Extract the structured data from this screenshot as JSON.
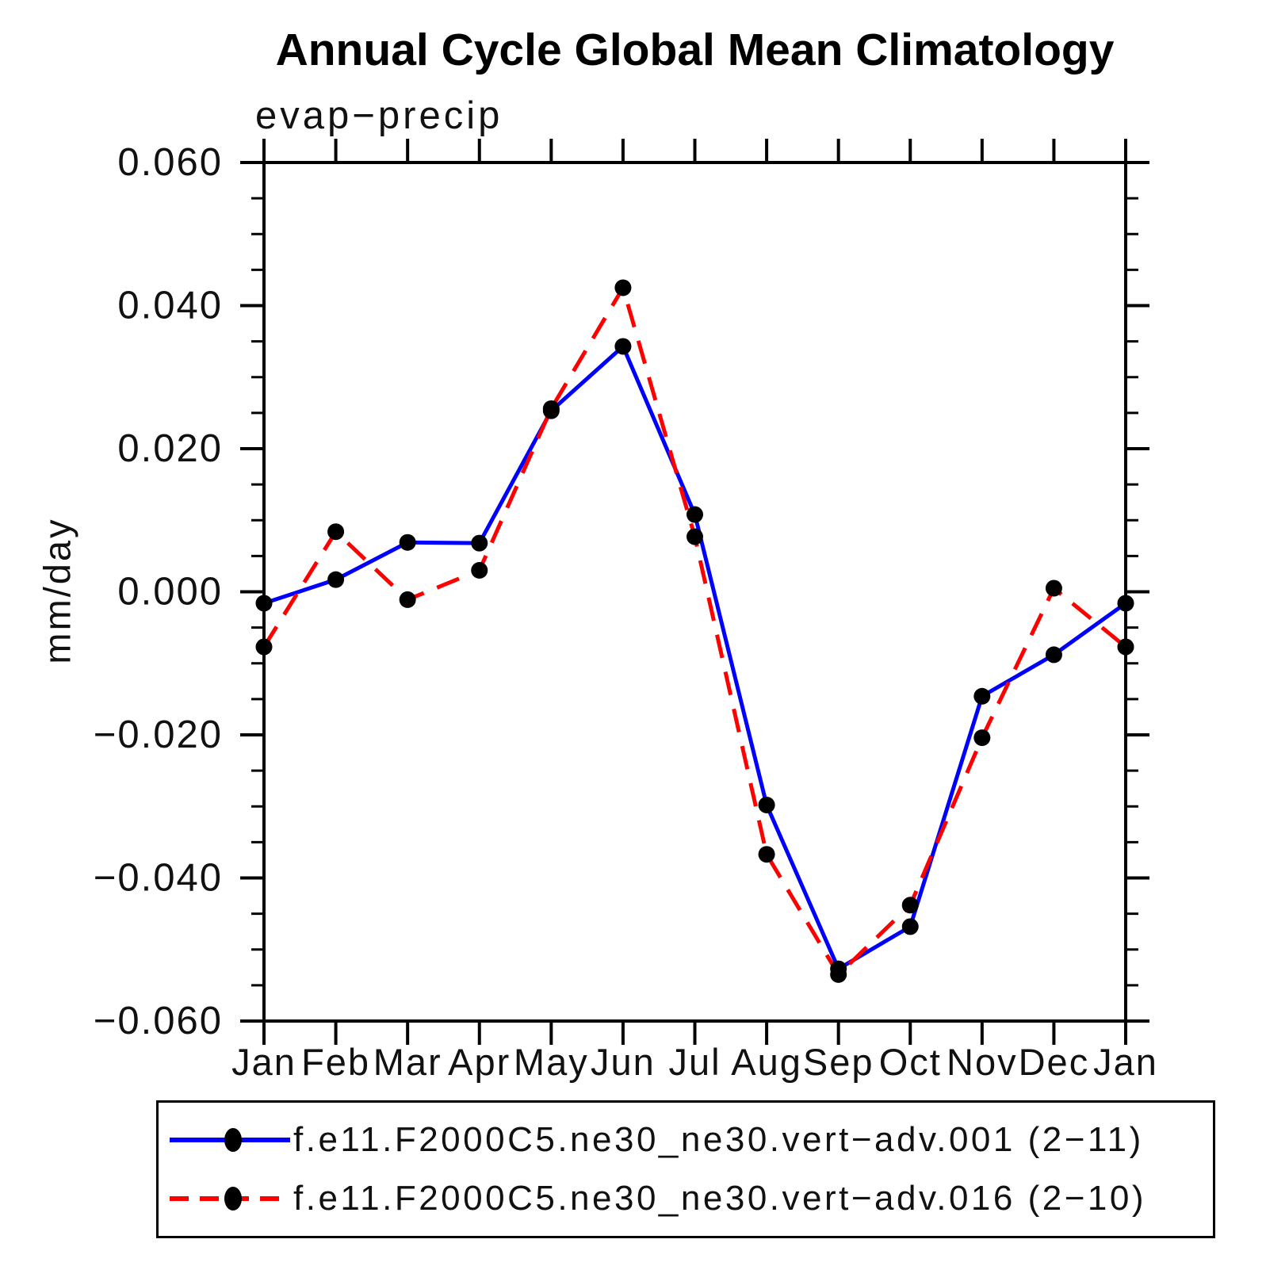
{
  "chart_data": {
    "type": "line",
    "title": "Annual Cycle Global Mean Climatology",
    "subtitle": "evap−precip",
    "ylabel": "mm/day",
    "xlabel": "",
    "categories": [
      "Jan",
      "Feb",
      "Mar",
      "Apr",
      "May",
      "Jun",
      "Jul",
      "Aug",
      "Sep",
      "Oct",
      "Nov",
      "Dec",
      "Jan"
    ],
    "ylim": [
      -0.06,
      0.06
    ],
    "ytick_step": 0.02,
    "yminor_step": 0.005,
    "ytick_labels": [
      "0.060",
      "0.040",
      "0.020",
      "0.000",
      "−0.020",
      "−0.040",
      "−0.060"
    ],
    "grid": false,
    "legend_position": "bottom",
    "axis_color": "#000000",
    "marker_color": "#000000",
    "series": [
      {
        "name": "f.e11.F2000C5.ne30_ne30.vert−adv.001 (2−11)",
        "color": "#0000ff",
        "style": "solid",
        "marker": "circle",
        "values": [
          -0.0016,
          0.0017,
          0.0069,
          0.0068,
          0.0253,
          0.0343,
          0.0108,
          -0.0298,
          -0.0527,
          -0.0468,
          -0.0146,
          -0.0088,
          -0.0016
        ]
      },
      {
        "name": "f.e11.F2000C5.ne30_ne30.vert−adv.016 (2−10)",
        "color": "#ff0000",
        "style": "dashed",
        "marker": "circle",
        "values": [
          -0.0077,
          0.0084,
          -0.0011,
          0.003,
          0.0256,
          0.0425,
          0.0077,
          -0.0367,
          -0.0535,
          -0.0438,
          -0.0204,
          0.0005,
          -0.0077
        ]
      }
    ]
  }
}
